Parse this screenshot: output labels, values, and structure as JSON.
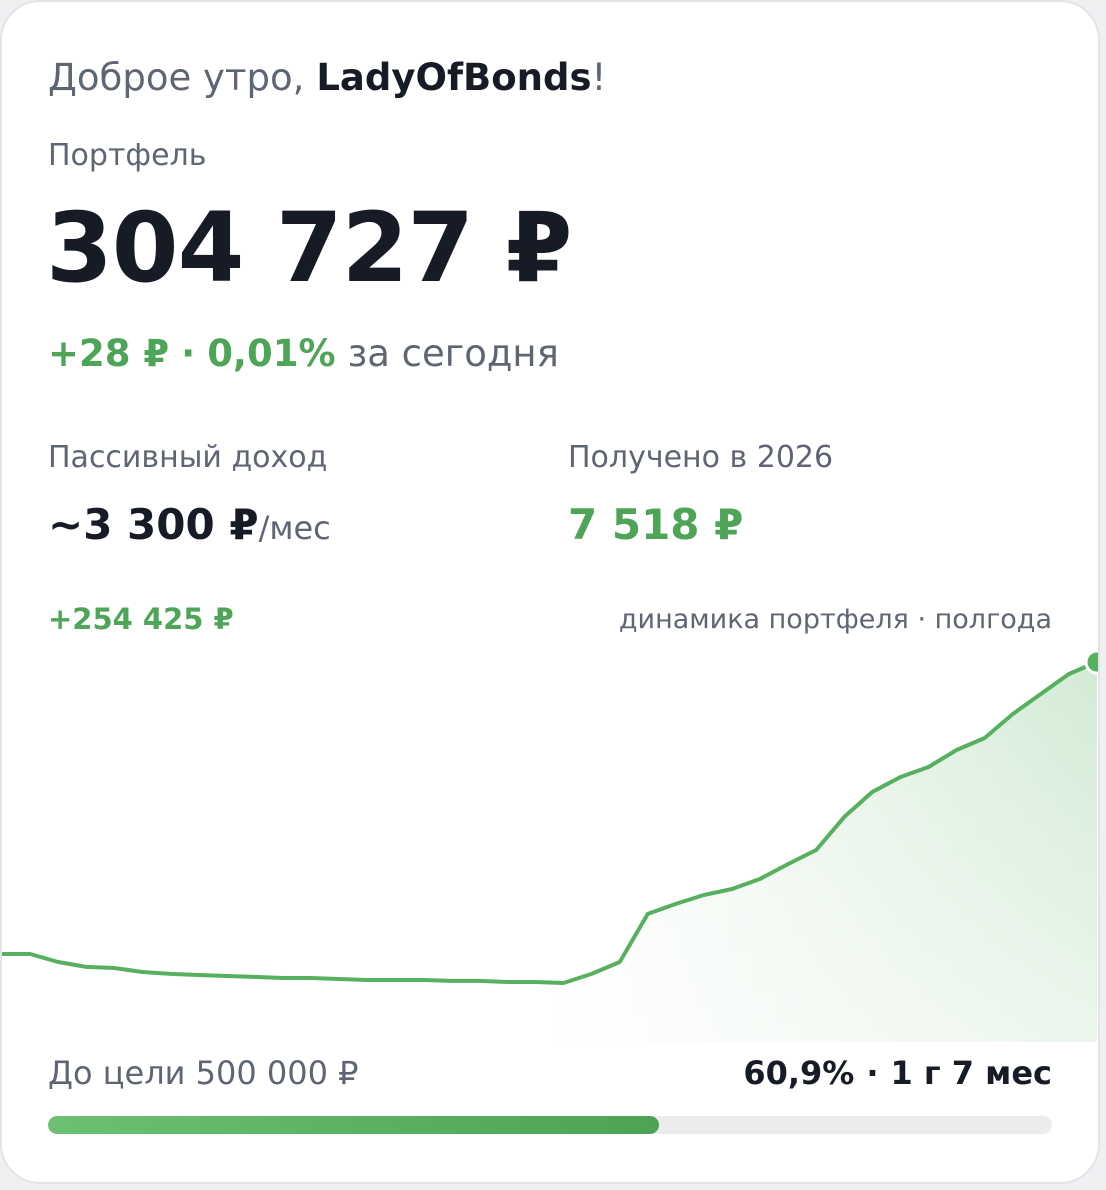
{
  "header": {
    "greeting": "Доброе утро,",
    "user": "LadyOfBonds",
    "punct": "!"
  },
  "portfolio": {
    "label": "Портфель",
    "value": "304 727 ₽",
    "change": {
      "amount": "+28 ₽",
      "separator": "·",
      "percent": "0,01%",
      "period": "за сегодня"
    }
  },
  "passive_income": {
    "label": "Пассивный доход",
    "value": "~3 300 ₽",
    "unit": "/мес"
  },
  "received": {
    "label": "Получено в 2026",
    "value": "7 518 ₽"
  },
  "chart_data": {
    "type": "line",
    "title": "динамика портфеля · полгода",
    "annotation": "+254 425 ₽",
    "color": "#56b05e",
    "values": [
      50302,
      50302,
      43300,
      39000,
      38100,
      34600,
      32900,
      32000,
      31100,
      30300,
      29400,
      29400,
      28500,
      27600,
      27600,
      27600,
      26800,
      26800,
      25900,
      25900,
      25000,
      32900,
      43300,
      85200,
      93900,
      101700,
      106900,
      115700,
      128700,
      140900,
      169700,
      191500,
      204500,
      213200,
      228000,
      238500,
      259400,
      276800,
      294300,
      304727
    ]
  },
  "goal": {
    "label": "До цели 500 000 ₽",
    "percent": 60.9,
    "percent_label": "60,9%",
    "separator": "·",
    "eta": "1 г 7 мес"
  }
}
